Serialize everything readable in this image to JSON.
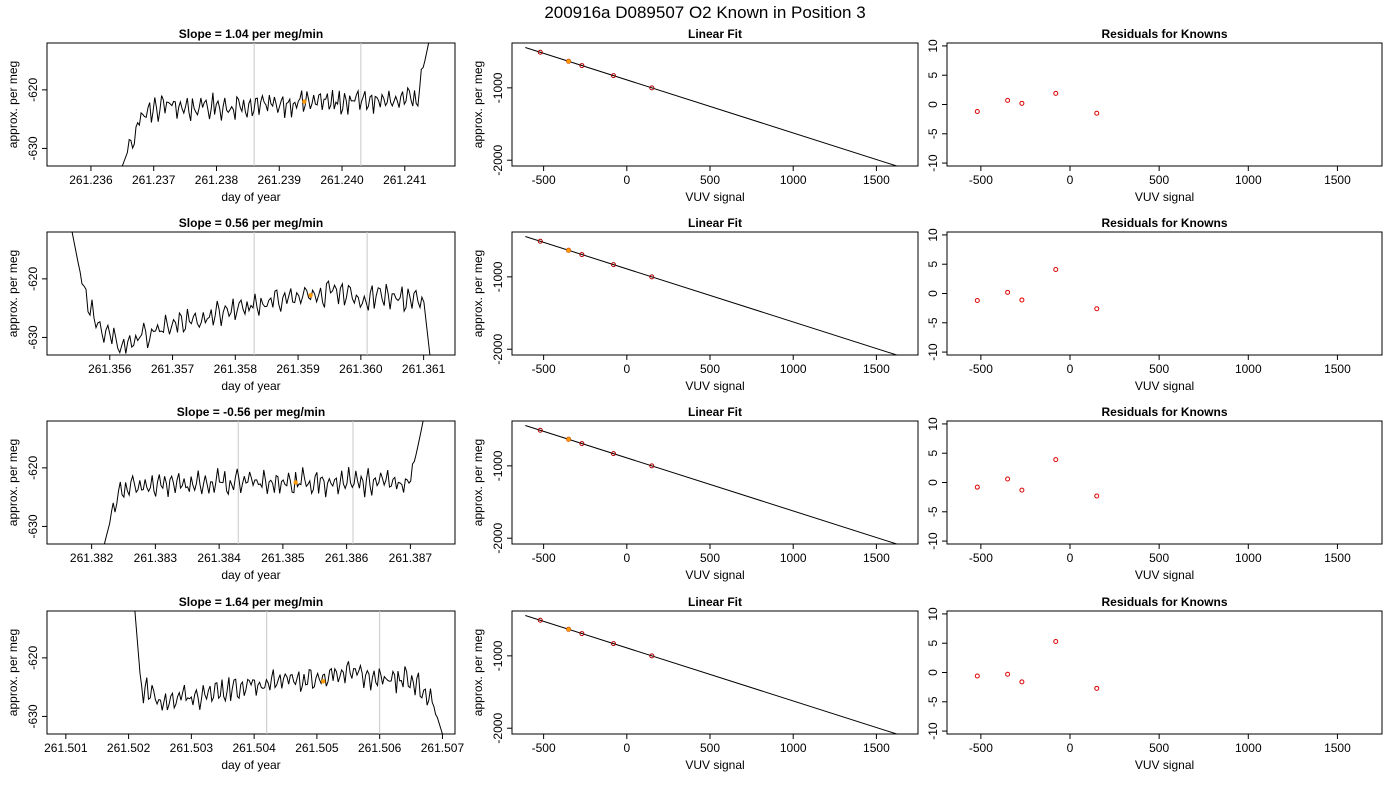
{
  "figure": {
    "title": "200916a      D089507    O2 Known in Position  3"
  },
  "chart_data": [
    {
      "type": "line",
      "row": 0,
      "col": 0,
      "title": "Slope =  1.04  per meg/min",
      "xlabel": "day of year",
      "ylabel": "approx. per meg",
      "xlim": [
        261.2353,
        261.2418
      ],
      "ylim": [
        -633,
        -612
      ],
      "xticks": [
        261.236,
        261.237,
        261.238,
        261.239,
        261.24,
        261.241
      ],
      "xtick_labels": [
        "261.236",
        "261.237",
        "261.238",
        "261.239",
        "261.240",
        "261.241"
      ],
      "yticks": [
        -620,
        -630
      ],
      "ytick_labels": [
        "-620",
        "-630"
      ],
      "vlines": [
        261.2386,
        261.2403
      ],
      "marker": {
        "x": 261.2394,
        "y": -622
      },
      "series": [
        {
          "x": [
            261.2365,
            261.2368,
            261.2372,
            261.2376,
            261.238,
            261.2385,
            261.239,
            261.2395,
            261.24,
            261.2405,
            261.241,
            261.2412,
            261.2414
          ],
          "y": [
            -633,
            -624.5,
            -622.5,
            -623.2,
            -622.8,
            -622.9,
            -622.3,
            -622,
            -622.1,
            -621.8,
            -622.3,
            -621,
            -611
          ]
        }
      ]
    },
    {
      "type": "line",
      "row": 0,
      "col": 1,
      "title": "Linear Fit",
      "xlabel": "VUV signal",
      "ylabel": "approx. per meg",
      "xlim": [
        -690,
        1750
      ],
      "ylim": [
        -2080,
        -380
      ],
      "xticks": [
        -500,
        0,
        500,
        1000,
        1500
      ],
      "xtick_labels": [
        "-500",
        "0",
        "500",
        "1000",
        "1500"
      ],
      "yticks": [
        -1000,
        -2000
      ],
      "ytick_labels": [
        "-1000",
        "-2000"
      ],
      "fit_line": {
        "x": [
          -610,
          1670
        ],
        "y": [
          -442,
          -2115
        ]
      },
      "points": [
        {
          "x": -520,
          "y": -508
        },
        {
          "x": -350,
          "y": -633
        },
        {
          "x": -270,
          "y": -692
        },
        {
          "x": -80,
          "y": -831
        },
        {
          "x": 150,
          "y": -1000
        }
      ],
      "highlight_point": {
        "x": -350,
        "y": -633
      }
    },
    {
      "type": "scatter",
      "row": 0,
      "col": 2,
      "title": "Residuals for Knowns",
      "xlabel": "VUV signal",
      "ylabel": "",
      "xlim": [
        -690,
        1750
      ],
      "ylim": [
        -10.5,
        10.5
      ],
      "xticks": [
        -500,
        0,
        500,
        1000,
        1500
      ],
      "xtick_labels": [
        "-500",
        "0",
        "500",
        "1000",
        "1500"
      ],
      "yticks": [
        10,
        5,
        0,
        -5,
        -10
      ],
      "ytick_labels": [
        "10",
        "5",
        "0",
        "-5",
        "-10"
      ],
      "points": [
        {
          "x": -520,
          "y": -1.2
        },
        {
          "x": -350,
          "y": 0.7
        },
        {
          "x": -270,
          "y": 0.2
        },
        {
          "x": -80,
          "y": 1.9
        },
        {
          "x": 150,
          "y": -1.5
        }
      ]
    },
    {
      "type": "line",
      "row": 1,
      "col": 0,
      "title": "Slope =  0.56  per meg/min",
      "xlabel": "day of year",
      "ylabel": "approx. per meg",
      "xlim": [
        261.355,
        261.3615
      ],
      "ylim": [
        -633,
        -612
      ],
      "xticks": [
        261.356,
        261.357,
        261.358,
        261.359,
        261.36,
        261.361
      ],
      "xtick_labels": [
        "261.356",
        "261.357",
        "261.358",
        "261.359",
        "261.360",
        "261.361"
      ],
      "yticks": [
        -620,
        -630
      ],
      "ytick_labels": [
        "-620",
        "-630"
      ],
      "vlines": [
        261.3583,
        261.3601
      ],
      "marker": {
        "x": 261.3592,
        "y": -622.8
      },
      "series": [
        {
          "x": [
            261.3554,
            261.3556,
            261.3559,
            261.3562,
            261.3566,
            261.357,
            261.3575,
            261.358,
            261.3585,
            261.359,
            261.3595,
            261.36,
            261.3605,
            261.361,
            261.3611
          ],
          "y": [
            -612,
            -623,
            -629,
            -631.5,
            -629.5,
            -628,
            -626.8,
            -625.3,
            -624,
            -623.3,
            -622.5,
            -623.2,
            -623,
            -623.5,
            -633
          ]
        }
      ]
    },
    {
      "type": "line",
      "row": 1,
      "col": 1,
      "title": "Linear Fit",
      "xlabel": "VUV signal",
      "ylabel": "approx. per meg",
      "xlim": [
        -690,
        1750
      ],
      "ylim": [
        -2080,
        -380
      ],
      "xticks": [
        -500,
        0,
        500,
        1000,
        1500
      ],
      "xtick_labels": [
        "-500",
        "0",
        "500",
        "1000",
        "1500"
      ],
      "yticks": [
        -1000,
        -2000
      ],
      "ytick_labels": [
        "-1000",
        "-2000"
      ],
      "fit_line": {
        "x": [
          -610,
          1670
        ],
        "y": [
          -442,
          -2115
        ]
      },
      "points": [
        {
          "x": -520,
          "y": -508
        },
        {
          "x": -350,
          "y": -633
        },
        {
          "x": -270,
          "y": -692
        },
        {
          "x": -80,
          "y": -831
        },
        {
          "x": 150,
          "y": -1000
        }
      ],
      "highlight_point": {
        "x": -350,
        "y": -633
      }
    },
    {
      "type": "scatter",
      "row": 1,
      "col": 2,
      "title": "Residuals for Knowns",
      "xlabel": "VUV signal",
      "ylabel": "",
      "xlim": [
        -690,
        1750
      ],
      "ylim": [
        -10.5,
        10.5
      ],
      "xticks": [
        -500,
        0,
        500,
        1000,
        1500
      ],
      "xtick_labels": [
        "-500",
        "0",
        "500",
        "1000",
        "1500"
      ],
      "yticks": [
        10,
        5,
        0,
        -5,
        -10
      ],
      "ytick_labels": [
        "10",
        "5",
        "0",
        "-5",
        "-10"
      ],
      "points": [
        {
          "x": -520,
          "y": -1.2
        },
        {
          "x": -350,
          "y": 0.2
        },
        {
          "x": -270,
          "y": -1.1
        },
        {
          "x": -80,
          "y": 4.1
        },
        {
          "x": 150,
          "y": -2.6
        }
      ]
    },
    {
      "type": "line",
      "row": 2,
      "col": 0,
      "title": "Slope =  -0.56  per meg/min",
      "xlabel": "day of year",
      "ylabel": "approx. per meg",
      "xlim": [
        261.3813,
        261.3877
      ],
      "ylim": [
        -633,
        -612
      ],
      "xticks": [
        261.382,
        261.383,
        261.384,
        261.385,
        261.386,
        261.387
      ],
      "xtick_labels": [
        "261.382",
        "261.383",
        "261.384",
        "261.385",
        "261.386",
        "261.387"
      ],
      "yticks": [
        -620,
        -630
      ],
      "ytick_labels": [
        "-620",
        "-630"
      ],
      "vlines": [
        261.3843,
        261.3861
      ],
      "marker": {
        "x": 261.3852,
        "y": -622.5
      },
      "series": [
        {
          "x": [
            261.3822,
            261.3824,
            261.3827,
            261.383,
            261.3835,
            261.384,
            261.3845,
            261.385,
            261.3855,
            261.386,
            261.3865,
            261.387,
            261.3872
          ],
          "y": [
            -633,
            -624.5,
            -623.3,
            -622.8,
            -622.9,
            -622.5,
            -622.7,
            -622.3,
            -622.6,
            -622.2,
            -622.8,
            -622.5,
            -612
          ]
        }
      ]
    },
    {
      "type": "line",
      "row": 2,
      "col": 1,
      "title": "Linear Fit",
      "xlabel": "VUV signal",
      "ylabel": "approx. per meg",
      "xlim": [
        -690,
        1750
      ],
      "ylim": [
        -2080,
        -380
      ],
      "xticks": [
        -500,
        0,
        500,
        1000,
        1500
      ],
      "xtick_labels": [
        "-500",
        "0",
        "500",
        "1000",
        "1500"
      ],
      "yticks": [
        -1000,
        -2000
      ],
      "ytick_labels": [
        "-1000",
        "-2000"
      ],
      "fit_line": {
        "x": [
          -610,
          1670
        ],
        "y": [
          -442,
          -2115
        ]
      },
      "points": [
        {
          "x": -520,
          "y": -508
        },
        {
          "x": -350,
          "y": -633
        },
        {
          "x": -270,
          "y": -692
        },
        {
          "x": -80,
          "y": -831
        },
        {
          "x": 150,
          "y": -1000
        }
      ],
      "highlight_point": {
        "x": -350,
        "y": -633
      }
    },
    {
      "type": "scatter",
      "row": 2,
      "col": 2,
      "title": "Residuals for Knowns",
      "xlabel": "VUV signal",
      "ylabel": "",
      "xlim": [
        -690,
        1750
      ],
      "ylim": [
        -10.5,
        10.5
      ],
      "xticks": [
        -500,
        0,
        500,
        1000,
        1500
      ],
      "xtick_labels": [
        "-500",
        "0",
        "500",
        "1000",
        "1500"
      ],
      "yticks": [
        10,
        5,
        0,
        -5,
        -10
      ],
      "ytick_labels": [
        "10",
        "5",
        "0",
        "-5",
        "-10"
      ],
      "points": [
        {
          "x": -520,
          "y": -0.8
        },
        {
          "x": -350,
          "y": 0.6
        },
        {
          "x": -270,
          "y": -1.3
        },
        {
          "x": -80,
          "y": 3.9
        },
        {
          "x": 150,
          "y": -2.3
        }
      ]
    },
    {
      "type": "line",
      "row": 3,
      "col": 0,
      "title": "Slope =  1.64  per meg/min",
      "xlabel": "day of year",
      "ylabel": "approx. per meg",
      "xlim": [
        261.5007,
        261.5072
      ],
      "ylim": [
        -633,
        -612
      ],
      "xticks": [
        261.501,
        261.502,
        261.503,
        261.504,
        261.505,
        261.506,
        261.507
      ],
      "xtick_labels": [
        "261.501",
        "261.502",
        "261.503",
        "261.504",
        "261.505",
        "261.506",
        "261.507"
      ],
      "yticks": [
        -620,
        -630
      ],
      "ytick_labels": [
        "-620",
        "-630"
      ],
      "vlines": [
        261.5042,
        261.506
      ],
      "marker": {
        "x": 261.5051,
        "y": -624
      },
      "series": [
        {
          "x": [
            261.5021,
            261.5022,
            261.5025,
            261.503,
            261.5035,
            261.504,
            261.5045,
            261.505,
            261.5055,
            261.506,
            261.5065,
            261.5068,
            261.507
          ],
          "y": [
            -612,
            -625,
            -627.5,
            -626.5,
            -625.8,
            -624.5,
            -624,
            -623.3,
            -622,
            -623.4,
            -624,
            -626,
            -633
          ]
        }
      ]
    },
    {
      "type": "line",
      "row": 3,
      "col": 1,
      "title": "Linear Fit",
      "xlabel": "VUV signal",
      "ylabel": "approx. per meg",
      "xlim": [
        -690,
        1750
      ],
      "ylim": [
        -2080,
        -380
      ],
      "xticks": [
        -500,
        0,
        500,
        1000,
        1500
      ],
      "xtick_labels": [
        "-500",
        "0",
        "500",
        "1000",
        "1500"
      ],
      "yticks": [
        -1000,
        -2000
      ],
      "ytick_labels": [
        "-1000",
        "-2000"
      ],
      "fit_line": {
        "x": [
          -610,
          1670
        ],
        "y": [
          -442,
          -2115
        ]
      },
      "points": [
        {
          "x": -520,
          "y": -508
        },
        {
          "x": -350,
          "y": -633
        },
        {
          "x": -270,
          "y": -692
        },
        {
          "x": -80,
          "y": -831
        },
        {
          "x": 150,
          "y": -1000
        }
      ],
      "highlight_point": {
        "x": -350,
        "y": -633
      }
    },
    {
      "type": "scatter",
      "row": 3,
      "col": 2,
      "title": "Residuals for Knowns",
      "xlabel": "VUV signal",
      "ylabel": "",
      "xlim": [
        -690,
        1750
      ],
      "ylim": [
        -10.5,
        10.5
      ],
      "xticks": [
        -500,
        0,
        500,
        1000,
        1500
      ],
      "xtick_labels": [
        "-500",
        "0",
        "500",
        "1000",
        "1500"
      ],
      "yticks": [
        10,
        5,
        0,
        -5,
        -10
      ],
      "ytick_labels": [
        "10",
        "5",
        "0",
        "-5",
        "-10"
      ],
      "points": [
        {
          "x": -520,
          "y": -0.6
        },
        {
          "x": -350,
          "y": -0.3
        },
        {
          "x": -270,
          "y": -1.6
        },
        {
          "x": -80,
          "y": 5.3
        },
        {
          "x": 150,
          "y": -2.7
        }
      ]
    }
  ],
  "colors": {
    "line": "#000000",
    "vline": "#c8c8c8",
    "marker": "#ff9900",
    "fit_point": "#b00000",
    "residual_point": "#e00000"
  }
}
